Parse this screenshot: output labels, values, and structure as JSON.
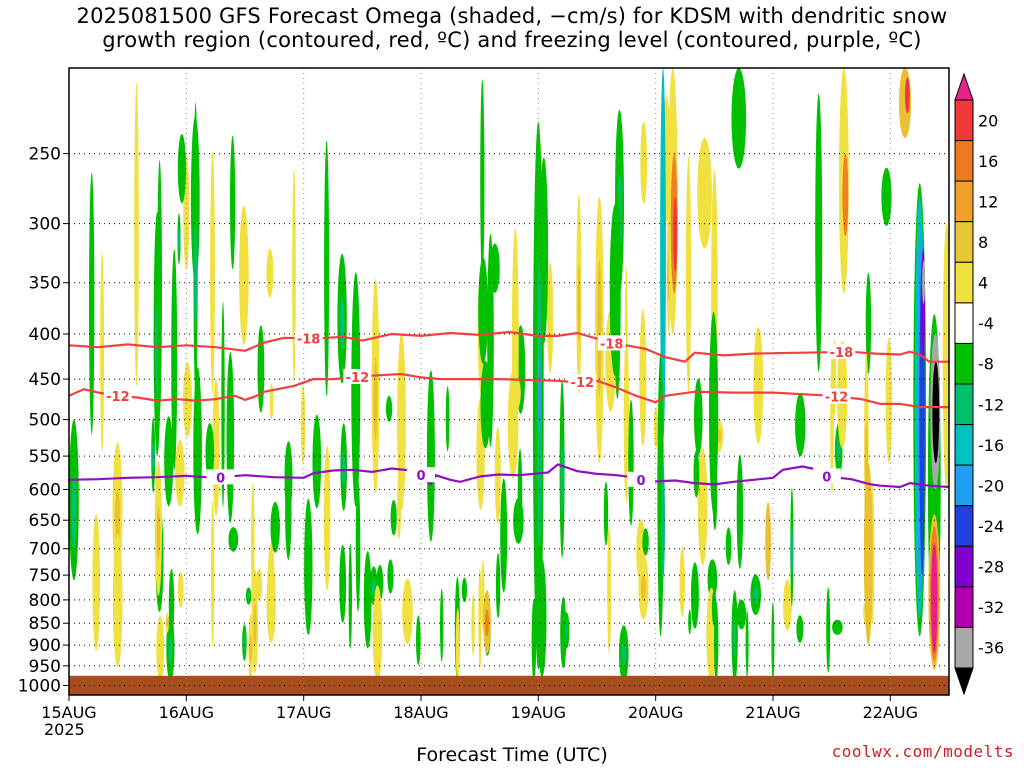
{
  "title": {
    "line1": "2025081500 GFS Forecast Omega (shaded, −cm/s) for KDSM with dendritic snow",
    "line2": "growth region (contoured, red, ºC) and freezing level (contoured, purple, ºC)"
  },
  "credit": "coolwx.com/modelts",
  "chart_data": {
    "type": "heatmap",
    "xlabel": "Forecast Time (UTC)",
    "x_ticks": [
      "15AUG",
      "16AUG",
      "17AUG",
      "18AUG",
      "19AUG",
      "20AUG",
      "21AUG",
      "22AUG"
    ],
    "x_range_hours": [
      0,
      180
    ],
    "year_label": "2025",
    "y_ticks": [
      250,
      300,
      350,
      400,
      450,
      500,
      550,
      600,
      650,
      700,
      750,
      800,
      850,
      900,
      950,
      1000
    ],
    "y_range_hpa": [
      200,
      1025
    ],
    "y_scale": "log",
    "grid": true,
    "colorbar": {
      "labels": [
        "20",
        "16",
        "12",
        "8",
        "4",
        "-4",
        "-8",
        "-12",
        "-16",
        "-20",
        "-24",
        "-28",
        "-32",
        "-36"
      ],
      "levels": [
        20,
        16,
        12,
        8,
        4,
        -4,
        -8,
        -12,
        -16,
        -20,
        -24,
        -28,
        -32,
        -36
      ],
      "colors": [
        "#e8208a",
        "#f03838",
        "#f07820",
        "#f0a028",
        "#e8c838",
        "#f0e040",
        "#ffffff",
        "#00c000",
        "#00c070",
        "#00c0c0",
        "#20a0f0",
        "#2040e0",
        "#8000d0",
        "#b000b0",
        "#a8a8a8",
        "#000000"
      ]
    },
    "contours": [
      {
        "label": "-18",
        "color": "#f04040",
        "points": [
          [
            0,
            412
          ],
          [
            6,
            414
          ],
          [
            12,
            411
          ],
          [
            18,
            414
          ],
          [
            24,
            412
          ],
          [
            30,
            414
          ],
          [
            36,
            418
          ],
          [
            40,
            409
          ],
          [
            44,
            404
          ],
          [
            50,
            405
          ],
          [
            56,
            403
          ],
          [
            60,
            407
          ],
          [
            66,
            400
          ],
          [
            72,
            402
          ],
          [
            78,
            399
          ],
          [
            84,
            401
          ],
          [
            90,
            398
          ],
          [
            96,
            402
          ],
          [
            100,
            402
          ],
          [
            104,
            399
          ],
          [
            108,
            405
          ],
          [
            111,
            410
          ],
          [
            114,
            412
          ],
          [
            118,
            416
          ],
          [
            122,
            425
          ],
          [
            126,
            430
          ],
          [
            128,
            420
          ],
          [
            134,
            423
          ],
          [
            140,
            421
          ],
          [
            150,
            420
          ],
          [
            160,
            419
          ],
          [
            165,
            421
          ],
          [
            170,
            422
          ],
          [
            172,
            419
          ],
          [
            174,
            422
          ],
          [
            176,
            430
          ],
          [
            178,
            430
          ],
          [
            180,
            430
          ]
        ],
        "label_hours": [
          49,
          111,
          158
        ]
      },
      {
        "label": "-12",
        "color": "#f04040",
        "points": [
          [
            0,
            470
          ],
          [
            3,
            462
          ],
          [
            6,
            466
          ],
          [
            10,
            470
          ],
          [
            14,
            472
          ],
          [
            18,
            476
          ],
          [
            22,
            474
          ],
          [
            26,
            476
          ],
          [
            30,
            474
          ],
          [
            34,
            470
          ],
          [
            36,
            475
          ],
          [
            38,
            471
          ],
          [
            40,
            465
          ],
          [
            46,
            458
          ],
          [
            50,
            450
          ],
          [
            54,
            450
          ],
          [
            58,
            448
          ],
          [
            62,
            446
          ],
          [
            68,
            444
          ],
          [
            72,
            448
          ],
          [
            76,
            450
          ],
          [
            82,
            450
          ],
          [
            88,
            450
          ],
          [
            94,
            451
          ],
          [
            100,
            452
          ],
          [
            104,
            454
          ],
          [
            108,
            452
          ],
          [
            112,
            460
          ],
          [
            116,
            470
          ],
          [
            120,
            478
          ],
          [
            122,
            470
          ],
          [
            128,
            465
          ],
          [
            136,
            466
          ],
          [
            144,
            466
          ],
          [
            150,
            468
          ],
          [
            156,
            470
          ],
          [
            162,
            474
          ],
          [
            166,
            480
          ],
          [
            170,
            480
          ],
          [
            174,
            484
          ],
          [
            180,
            484
          ]
        ],
        "label_hours": [
          10,
          59,
          105,
          157
        ]
      },
      {
        "label": "0",
        "color": "#9010c0",
        "points": [
          [
            0,
            585
          ],
          [
            6,
            584
          ],
          [
            12,
            582
          ],
          [
            18,
            581
          ],
          [
            24,
            579
          ],
          [
            30,
            582
          ],
          [
            36,
            578
          ],
          [
            42,
            581
          ],
          [
            48,
            582
          ],
          [
            50,
            575
          ],
          [
            54,
            571
          ],
          [
            58,
            570
          ],
          [
            62,
            573
          ],
          [
            66,
            568
          ],
          [
            70,
            571
          ],
          [
            72,
            578
          ],
          [
            74,
            592
          ],
          [
            75,
            578
          ],
          [
            78,
            585
          ],
          [
            80,
            588
          ],
          [
            84,
            580
          ],
          [
            88,
            577
          ],
          [
            92,
            578
          ],
          [
            98,
            574
          ],
          [
            100,
            562
          ],
          [
            104,
            572
          ],
          [
            108,
            576
          ],
          [
            112,
            578
          ],
          [
            116,
            582
          ],
          [
            118,
            588
          ],
          [
            124,
            586
          ],
          [
            128,
            590
          ],
          [
            132,
            592
          ],
          [
            136,
            588
          ],
          [
            140,
            585
          ],
          [
            144,
            582
          ],
          [
            146,
            570
          ],
          [
            150,
            565
          ],
          [
            152,
            568
          ],
          [
            155,
            580
          ],
          [
            160,
            584
          ],
          [
            164,
            592
          ],
          [
            166,
            594
          ],
          [
            170,
            596
          ],
          [
            172,
            590
          ],
          [
            176,
            594
          ],
          [
            180,
            596
          ]
        ],
        "label_hours": [
          31,
          72,
          117,
          155
        ]
      }
    ]
  }
}
